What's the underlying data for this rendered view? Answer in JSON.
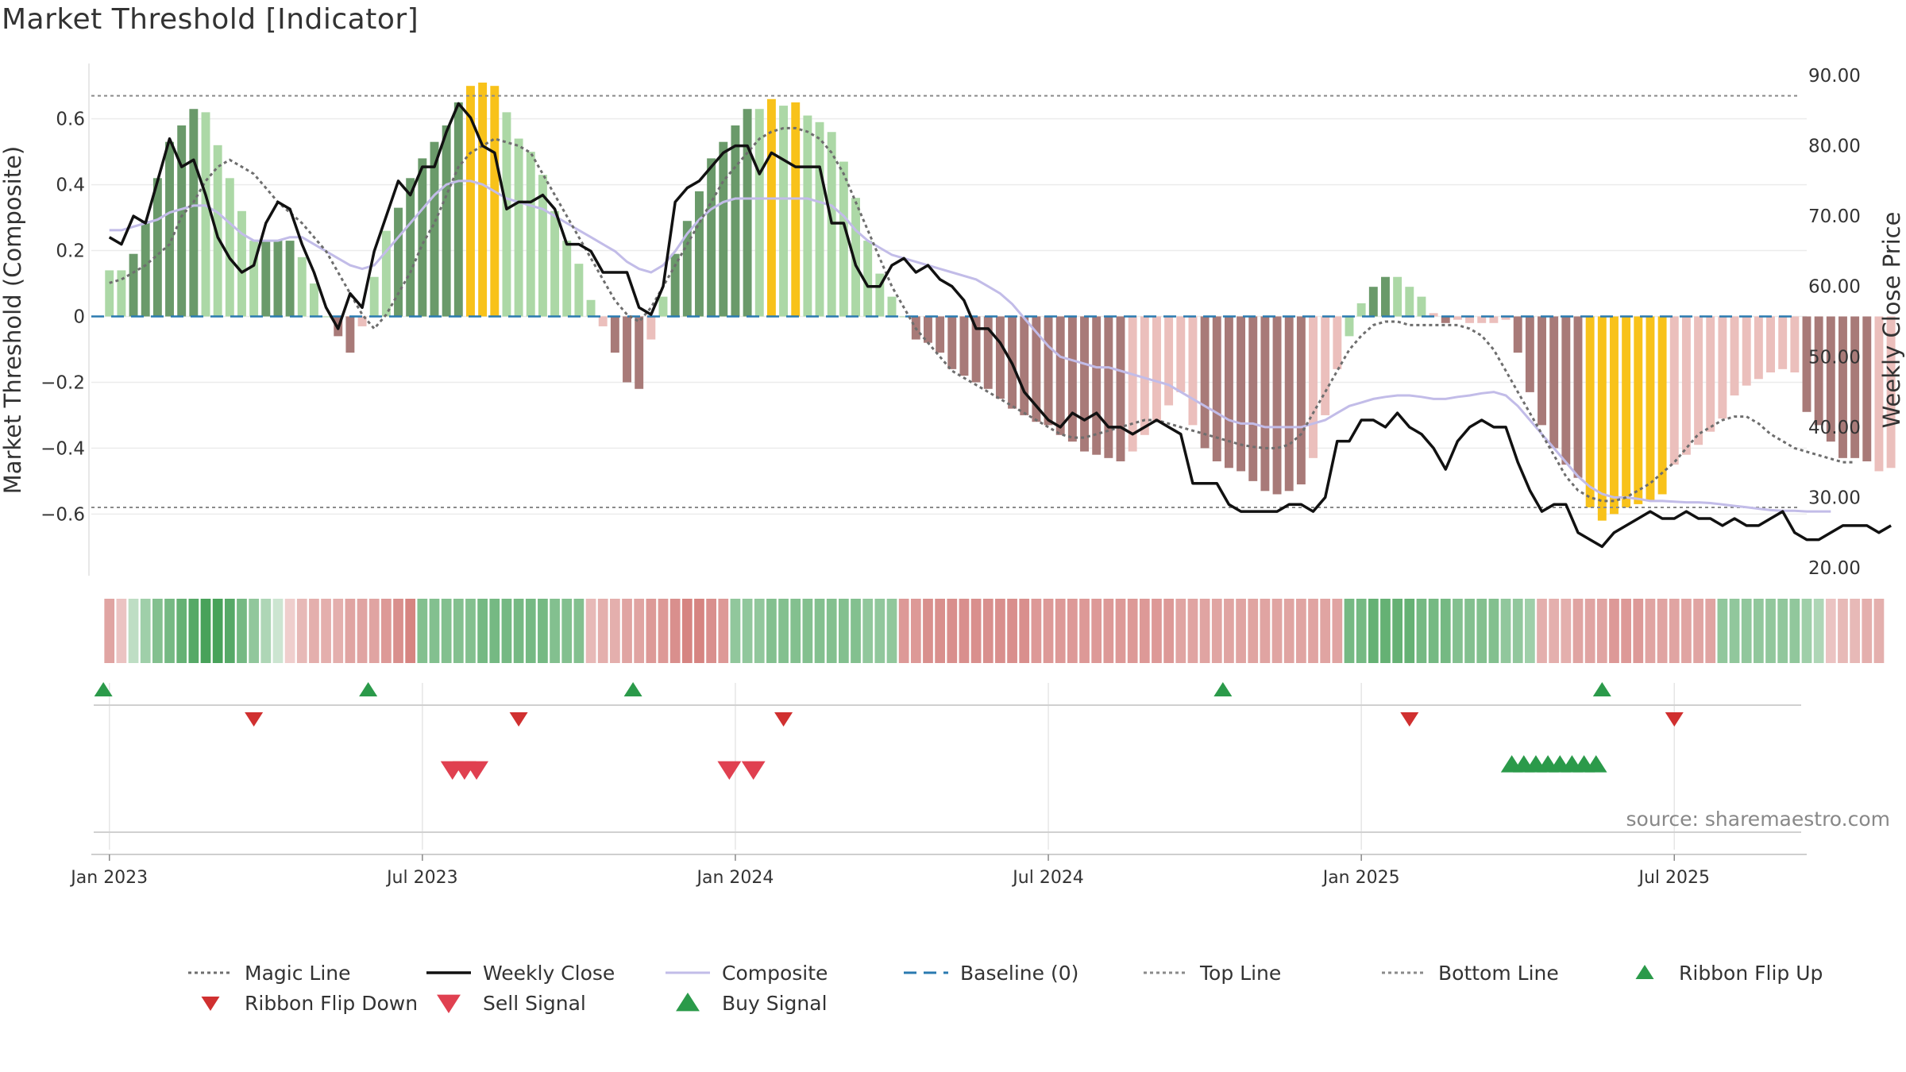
{
  "colors": {
    "bar_dark_green": "#6a9a6a",
    "bar_light_green": "#acd8a6",
    "bar_dark_red": "#a87a78",
    "bar_light_red": "#ebbfbc",
    "bar_yellow": "#f8c21a",
    "magic_line": "#6e6e6e",
    "weekly_close": "#111111",
    "composite": "#c2bce8",
    "baseline": "#2a7ab0",
    "threshold_lines": "#8a8a8a",
    "flip_up": "#2b9a4a",
    "flip_down": "#d03030",
    "sell": "#e04050",
    "buy": "#2b9a4a"
  },
  "chart_data": {
    "type": "bar+line",
    "title": "Market Threshold [Indicator]",
    "ylabel_left": "Market Threshold (Composite)",
    "ylabel_right": "Weekly Close Price",
    "ylim_left": [
      -0.78,
      0.78
    ],
    "ylim_right": [
      20,
      90
    ],
    "yticks_left": [
      {
        "value": 0.6,
        "label": "0.6"
      },
      {
        "value": 0.4,
        "label": "0.4"
      },
      {
        "value": 0.2,
        "label": "0.2"
      },
      {
        "value": 0,
        "label": "0"
      },
      {
        "value": -0.2,
        "label": "−0.2"
      },
      {
        "value": -0.4,
        "label": "−0.4"
      },
      {
        "value": -0.6,
        "label": "−0.6"
      }
    ],
    "yticks_right": [
      {
        "value": 90,
        "label": "90.00"
      },
      {
        "value": 80,
        "label": "80.00"
      },
      {
        "value": 70,
        "label": "70.00"
      },
      {
        "value": 60,
        "label": "60.00"
      },
      {
        "value": 50,
        "label": "50.00"
      },
      {
        "value": 40,
        "label": "40.00"
      },
      {
        "value": 30,
        "label": "30.00"
      },
      {
        "value": 20,
        "label": "20.00"
      }
    ],
    "xticks": [
      {
        "week": 0,
        "label": "Jan 2023"
      },
      {
        "week": 26,
        "label": "Jul 2023"
      },
      {
        "week": 52,
        "label": "Jan 2024"
      },
      {
        "week": 78,
        "label": "Jul 2024"
      },
      {
        "week": 104,
        "label": "Jan 2025"
      },
      {
        "week": 130,
        "label": "Jul 2025"
      }
    ],
    "week_range": [
      -1.5,
      141
    ],
    "top_line": 0.67,
    "bottom_line": -0.58,
    "baseline": 0,
    "composite_bars": [
      0.14,
      0.14,
      0.19,
      0.29,
      0.42,
      0.53,
      0.58,
      0.63,
      0.62,
      0.52,
      0.42,
      0.32,
      0.23,
      0.23,
      0.23,
      0.23,
      0.18,
      0.1,
      0.0,
      -0.06,
      -0.11,
      -0.03,
      0.12,
      0.26,
      0.33,
      0.42,
      0.48,
      0.53,
      0.58,
      0.65,
      0.7,
      0.71,
      0.7,
      0.62,
      0.54,
      0.5,
      0.43,
      0.32,
      0.23,
      0.16,
      0.05,
      -0.03,
      -0.11,
      -0.2,
      -0.22,
      -0.07,
      0.06,
      0.19,
      0.29,
      0.38,
      0.48,
      0.53,
      0.58,
      0.63,
      0.63,
      0.66,
      0.64,
      0.65,
      0.61,
      0.59,
      0.56,
      0.47,
      0.36,
      0.23,
      0.13,
      0.06,
      0.0,
      -0.07,
      -0.08,
      -0.11,
      -0.16,
      -0.18,
      -0.2,
      -0.22,
      -0.25,
      -0.28,
      -0.3,
      -0.32,
      -0.33,
      -0.36,
      -0.38,
      -0.41,
      -0.42,
      -0.43,
      -0.44,
      -0.41,
      -0.36,
      -0.32,
      -0.27,
      -0.23,
      -0.33,
      -0.4,
      -0.44,
      -0.46,
      -0.47,
      -0.5,
      -0.53,
      -0.54,
      -0.53,
      -0.51,
      -0.43,
      -0.3,
      -0.16,
      -0.06,
      0.04,
      0.09,
      0.12,
      0.12,
      0.09,
      0.06,
      0.01,
      -0.02,
      -0.01,
      -0.02,
      -0.02,
      -0.02,
      -0.01,
      -0.11,
      -0.23,
      -0.33,
      -0.4,
      -0.45,
      -0.49,
      -0.58,
      -0.62,
      -0.6,
      -0.58,
      -0.57,
      -0.56,
      -0.54,
      -0.45,
      -0.42,
      -0.39,
      -0.35,
      -0.31,
      -0.24,
      -0.21,
      -0.19,
      -0.17,
      -0.16,
      -0.17,
      -0.29,
      -0.33,
      -0.38,
      -0.43,
      -0.43,
      -0.44,
      -0.47,
      -0.46
    ],
    "bar_colors": [
      "lg",
      "lg",
      "dg",
      "dg",
      "dg",
      "dg",
      "dg",
      "dg",
      "lg",
      "lg",
      "lg",
      "lg",
      "lg",
      "dg",
      "dg",
      "dg",
      "lg",
      "lg",
      "lg",
      "dr",
      "dr",
      "lr",
      "lg",
      "lg",
      "dg",
      "dg",
      "dg",
      "dg",
      "dg",
      "dg",
      "y",
      "y",
      "y",
      "lg",
      "lg",
      "lg",
      "lg",
      "lg",
      "lg",
      "lg",
      "lg",
      "lr",
      "dr",
      "dr",
      "dr",
      "lr",
      "lg",
      "dg",
      "dg",
      "dg",
      "dg",
      "dg",
      "dg",
      "dg",
      "lg",
      "y",
      "lg",
      "y",
      "lg",
      "lg",
      "lg",
      "lg",
      "lg",
      "lg",
      "lg",
      "lg",
      "lg",
      "dr",
      "dr",
      "dr",
      "dr",
      "dr",
      "dr",
      "dr",
      "dr",
      "dr",
      "dr",
      "dr",
      "dr",
      "dr",
      "dr",
      "dr",
      "dr",
      "dr",
      "dr",
      "lr",
      "lr",
      "lr",
      "lr",
      "lr",
      "lr",
      "dr",
      "dr",
      "dr",
      "dr",
      "dr",
      "dr",
      "dr",
      "dr",
      "dr",
      "lr",
      "lr",
      "lr",
      "lg",
      "lg",
      "dg",
      "dg",
      "lg",
      "lg",
      "lg",
      "lr",
      "dr",
      "lr",
      "lr",
      "lr",
      "lr",
      "lr",
      "dr",
      "dr",
      "dr",
      "dr",
      "dr",
      "dr",
      "y",
      "y",
      "y",
      "y",
      "y",
      "y",
      "y",
      "lr",
      "lr",
      "lr",
      "lr",
      "lr",
      "lr",
      "lr",
      "lr",
      "lr",
      "lr",
      "lr",
      "dr",
      "dr",
      "dr",
      "dr",
      "dr",
      "dr",
      "lr",
      "lr"
    ],
    "weekly_close": [
      67,
      66,
      70,
      69,
      75,
      81,
      77,
      78,
      73,
      67,
      64,
      62,
      63,
      69,
      72,
      71,
      66,
      62,
      57,
      54,
      59,
      57,
      65,
      70,
      75,
      73,
      77,
      77,
      82,
      86,
      84,
      80,
      79,
      71,
      72,
      72,
      73,
      71,
      66,
      66,
      65,
      62,
      62,
      62,
      57,
      56,
      60,
      72,
      74,
      75,
      77,
      79,
      80,
      80,
      76,
      79,
      78,
      77,
      77,
      77,
      69,
      69,
      63,
      60,
      60,
      63,
      64,
      62,
      63,
      61,
      60,
      58,
      54,
      54,
      52,
      49,
      45,
      43,
      41,
      40,
      42,
      41,
      42,
      40,
      40,
      39,
      40,
      41,
      40,
      39,
      32,
      32,
      32,
      29,
      28,
      28,
      28,
      28,
      29,
      29,
      28,
      30,
      38,
      38,
      41,
      41,
      40,
      42,
      40,
      39,
      37,
      34,
      38,
      40,
      41,
      40,
      40,
      35,
      31,
      28,
      29,
      29,
      25,
      24,
      23,
      25,
      26,
      27,
      28,
      27,
      27,
      28,
      27,
      27,
      26,
      27,
      26,
      26,
      27,
      28,
      25,
      24,
      24,
      25,
      26,
      26,
      26,
      25,
      26
    ],
    "magic_line": [
      60.5,
      61,
      62,
      63,
      64.5,
      66,
      70,
      72,
      75,
      77,
      78,
      77,
      76,
      74,
      72,
      70.5,
      69,
      67,
      65,
      62,
      59,
      56,
      54,
      56,
      59,
      62,
      66,
      69,
      73,
      77,
      79,
      80,
      81,
      80.5,
      80,
      79,
      76,
      73,
      70,
      67,
      64,
      61,
      58,
      56,
      55,
      57,
      60,
      63,
      66,
      69,
      72,
      75,
      77,
      79,
      81,
      82,
      82.5,
      82.5,
      82,
      81,
      79,
      76,
      72,
      68,
      64,
      60,
      57,
      54,
      52,
      50,
      48,
      47,
      46,
      45,
      44,
      43,
      42,
      41,
      40,
      39,
      38.5,
      38.5,
      39,
      39.5,
      40,
      40.5,
      41,
      41,
      40.5,
      40,
      39.5,
      39,
      38.5,
      38,
      37.5,
      37.2,
      37,
      37,
      37.5,
      39,
      42,
      45,
      48,
      51,
      53,
      54.5,
      55,
      55,
      54.5,
      54.5,
      54.5,
      54.5,
      54.5,
      54,
      53,
      51,
      48,
      45,
      42,
      39,
      36,
      33,
      31,
      30,
      29.5,
      29.5,
      30,
      31,
      32,
      33.5,
      35,
      37,
      39,
      40,
      41,
      41.5,
      41.5,
      40.5,
      39,
      38,
      37,
      36.5,
      36,
      35.5,
      35,
      35
    ],
    "composite_line": [
      68,
      68,
      68.5,
      69,
      69.5,
      70.5,
      71,
      71.5,
      71.5,
      70.5,
      69,
      67.5,
      66.5,
      66.5,
      66.5,
      67,
      67,
      66,
      65,
      64,
      63,
      62.5,
      63,
      65,
      67,
      69,
      71,
      73,
      74.5,
      75,
      75,
      74.5,
      73.5,
      72.5,
      72,
      71.5,
      71,
      70,
      69,
      68,
      67,
      66,
      65,
      63.5,
      62.5,
      62,
      63,
      65,
      67.5,
      69.5,
      71,
      72,
      72.5,
      72.5,
      72.5,
      72.5,
      72.5,
      72.5,
      72.5,
      72,
      71.5,
      70,
      68,
      66.5,
      65.5,
      64.5,
      64,
      63.5,
      63,
      62.5,
      62,
      61.5,
      61,
      60,
      59,
      57.5,
      55.5,
      53.5,
      51.5,
      50,
      49.5,
      49,
      48.5,
      48.5,
      48,
      47.5,
      47,
      46.5,
      46,
      45,
      44,
      43,
      42,
      41,
      40.5,
      40.5,
      40,
      40,
      40,
      40,
      40.5,
      41,
      42,
      43,
      43.5,
      44,
      44.3,
      44.5,
      44.5,
      44.3,
      44,
      44,
      44.3,
      44.5,
      44.8,
      45,
      44.5,
      43,
      41,
      39,
      37,
      35,
      33,
      31.5,
      30.5,
      30,
      30,
      29.8,
      29.5,
      29.5,
      29.4,
      29.3,
      29.3,
      29.2,
      29,
      28.8,
      28.6,
      28.4,
      28.2,
      28.1,
      28.1,
      28,
      28,
      28
    ],
    "ribbon_values": [
      -0.6,
      -0.3,
      0.2,
      0.4,
      0.6,
      0.7,
      0.8,
      0.9,
      1.0,
      1.0,
      0.9,
      0.7,
      0.5,
      0.3,
      0.1,
      -0.2,
      -0.4,
      -0.5,
      -0.5,
      -0.5,
      -0.6,
      -0.6,
      -0.6,
      -0.7,
      -0.8,
      -0.9,
      0.6,
      0.6,
      0.6,
      0.6,
      0.6,
      0.7,
      0.7,
      0.7,
      0.7,
      0.7,
      0.7,
      0.6,
      0.6,
      0.6,
      -0.4,
      -0.5,
      -0.5,
      -0.6,
      -0.6,
      -0.7,
      -0.7,
      -0.8,
      -0.9,
      -0.9,
      -0.8,
      -0.7,
      0.5,
      0.5,
      0.5,
      0.6,
      0.6,
      0.6,
      0.6,
      0.6,
      0.6,
      0.6,
      0.6,
      0.5,
      0.5,
      0.5,
      -0.7,
      -0.7,
      -0.8,
      -0.8,
      -0.8,
      -0.8,
      -0.8,
      -0.8,
      -0.8,
      -0.8,
      -0.8,
      -0.7,
      -0.7,
      -0.7,
      -0.7,
      -0.7,
      -0.7,
      -0.7,
      -0.7,
      -0.7,
      -0.7,
      -0.7,
      -0.7,
      -0.6,
      -0.6,
      -0.6,
      -0.6,
      -0.6,
      -0.6,
      -0.6,
      -0.6,
      -0.6,
      -0.6,
      -0.6,
      -0.6,
      -0.6,
      -0.6,
      0.7,
      0.7,
      0.8,
      0.8,
      0.8,
      0.8,
      0.7,
      0.7,
      0.7,
      0.6,
      0.6,
      0.6,
      0.6,
      0.5,
      0.5,
      0.4,
      -0.5,
      -0.5,
      -0.5,
      -0.6,
      -0.6,
      -0.6,
      -0.7,
      -0.7,
      -0.7,
      -0.6,
      -0.6,
      -0.6,
      -0.6,
      -0.6,
      -0.6,
      0.5,
      0.5,
      0.5,
      0.5,
      0.5,
      0.5,
      0.5,
      0.4,
      0.3,
      -0.3,
      -0.4,
      -0.4,
      -0.5,
      -0.5
    ],
    "ribbon_flip_up": [
      -0.5,
      21.5,
      43.5,
      92.5,
      124
    ],
    "ribbon_flip_down": [
      12,
      34,
      56,
      108,
      130
    ],
    "sell_signals": [
      28.5,
      29.5,
      30.5,
      51.5,
      53.5
    ],
    "buy_signals": [
      116.5,
      117.5,
      118.5,
      119.5,
      120.5,
      121.5,
      122.5,
      123.5
    ],
    "source_text": "source: sharemaestro.com"
  },
  "legend": [
    {
      "id": "magic",
      "label": "Magic Line",
      "type": "dotted",
      "color": "#6e6e6e"
    },
    {
      "id": "close",
      "label": "Weekly Close",
      "type": "solid",
      "color": "#111111"
    },
    {
      "id": "composite",
      "label": "Composite",
      "type": "solid",
      "color": "#c2bce8"
    },
    {
      "id": "baseline",
      "label": "Baseline (0)",
      "type": "dashed",
      "color": "#2a7ab0"
    },
    {
      "id": "top",
      "label": "Top Line",
      "type": "dotted",
      "color": "#8a8a8a"
    },
    {
      "id": "bottom",
      "label": "Bottom Line",
      "type": "dotted",
      "color": "#8a8a8a"
    },
    {
      "id": "flipup",
      "label": "Ribbon Flip Up",
      "type": "tri-up",
      "color": "#2b9a4a"
    },
    {
      "id": "flipdown",
      "label": "Ribbon Flip Down",
      "type": "tri-down",
      "color": "#d03030"
    },
    {
      "id": "sell",
      "label": "Sell Signal",
      "type": "tri-down-big",
      "color": "#e04050"
    },
    {
      "id": "buy",
      "label": "Buy Signal",
      "type": "tri-up-big",
      "color": "#2b9a4a"
    }
  ]
}
